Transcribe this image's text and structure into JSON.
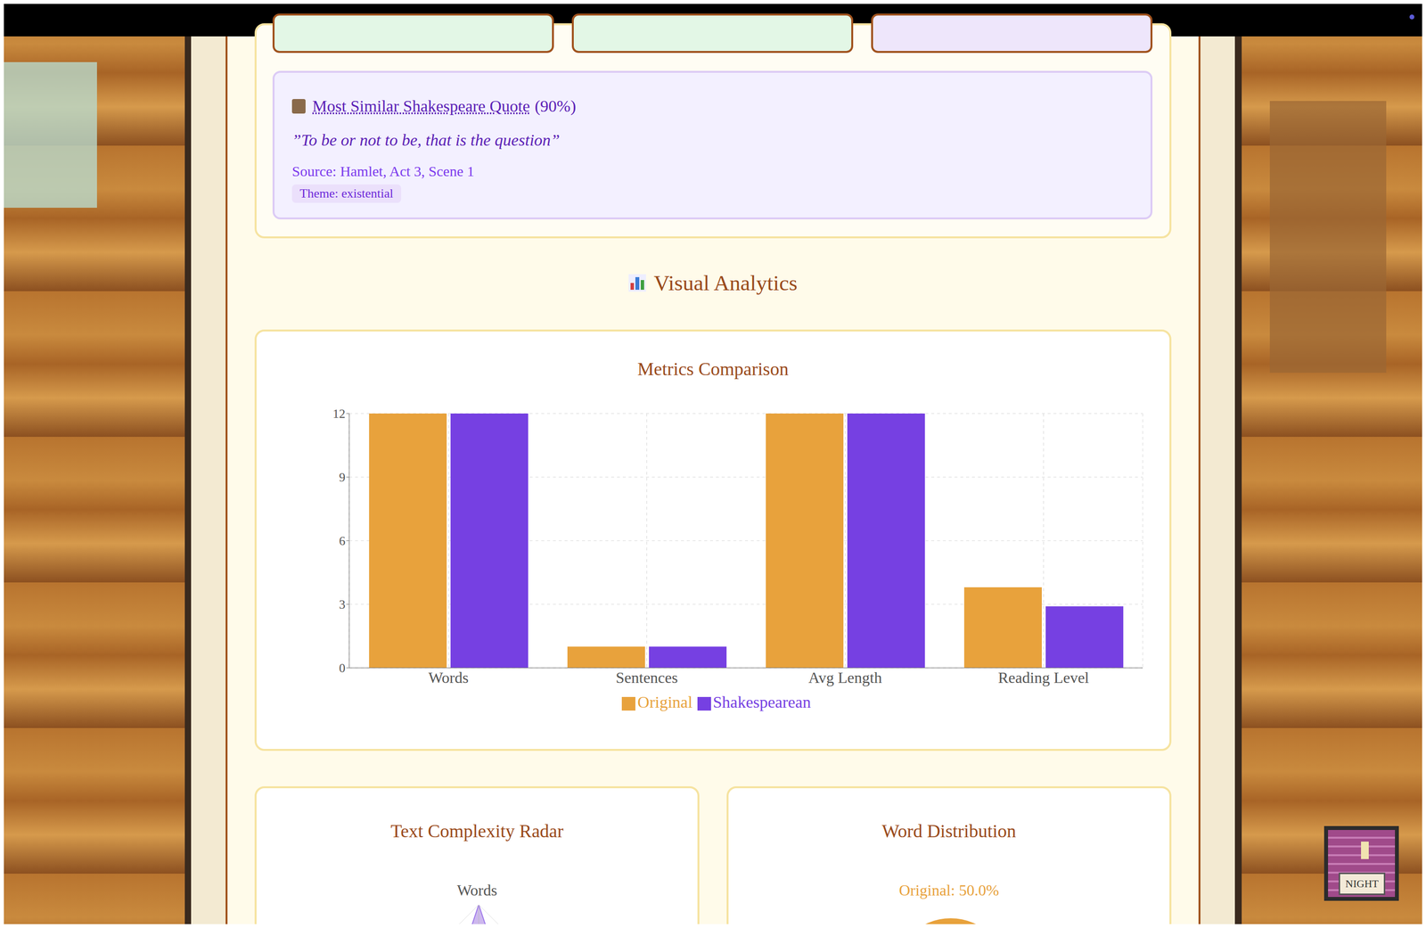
{
  "quote_card": {
    "title": "Most Similar Shakespeare Quote",
    "similarity": "(90%)",
    "quote": "”To be or not to be, that is the question”",
    "source": "Source: Hamlet, Act 3, Scene 1",
    "theme": "Theme: existential"
  },
  "section_title": "Visual Analytics",
  "chart_data": {
    "type": "bar",
    "title": "Metrics Comparison",
    "categories": [
      "Words",
      "Sentences",
      "Avg Length",
      "Reading Level"
    ],
    "series": [
      {
        "name": "Original",
        "color": "#e8a23c",
        "values": [
          12,
          1,
          12,
          3.8
        ]
      },
      {
        "name": "Shakespearean",
        "color": "#7640e2",
        "values": [
          12,
          1,
          12,
          2.9
        ]
      }
    ],
    "ylim": [
      0,
      12
    ],
    "yticks": [
      0,
      3,
      6,
      9,
      12
    ],
    "grid": true,
    "legend": "bottom"
  },
  "panels": [
    {
      "title": "Text Complexity Radar",
      "label": "Words"
    },
    {
      "title": "Word Distribution",
      "label": "Original: 50.0%"
    }
  ],
  "mode_button": "NIGHT"
}
